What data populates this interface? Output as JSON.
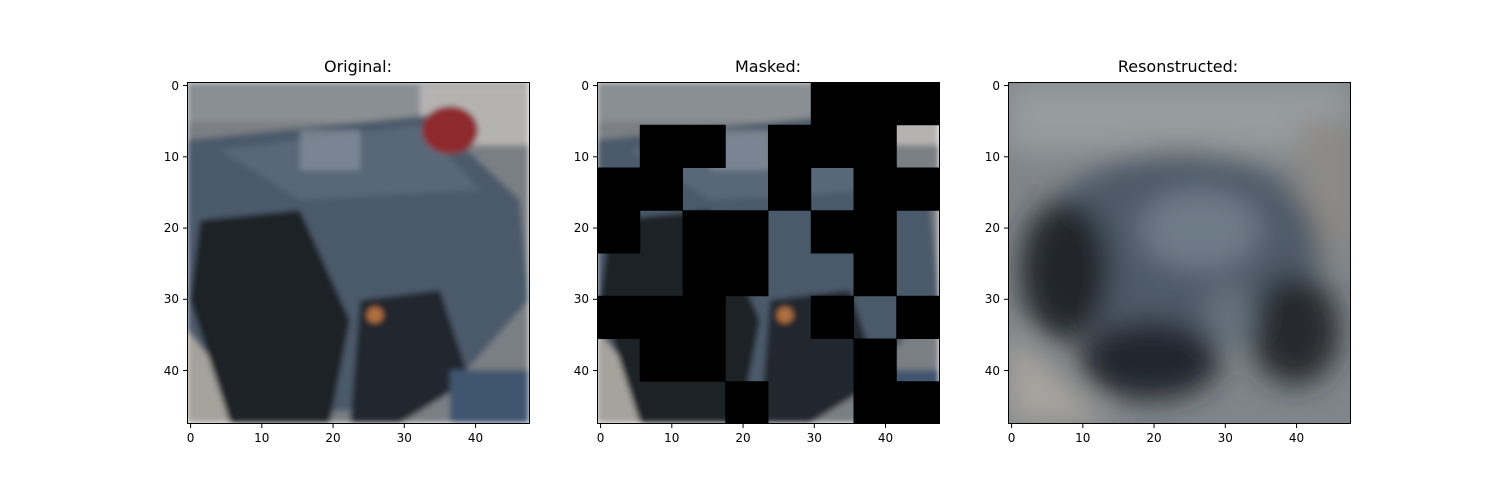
{
  "panels": [
    {
      "title": "Original:"
    },
    {
      "title": "Masked:"
    },
    {
      "title": "Resonstructed:"
    }
  ],
  "axes": {
    "x_ticks": [
      "0",
      "10",
      "20",
      "30",
      "40"
    ],
    "y_ticks": [
      "0",
      "10",
      "20",
      "30",
      "40"
    ]
  },
  "image": {
    "grid_size": 48,
    "patch_size": 6,
    "masked_patches": [
      [
        0,
        5
      ],
      [
        0,
        6
      ],
      [
        0,
        7
      ],
      [
        1,
        1
      ],
      [
        1,
        2
      ],
      [
        1,
        4
      ],
      [
        1,
        5
      ],
      [
        1,
        6
      ],
      [
        2,
        0
      ],
      [
        2,
        1
      ],
      [
        2,
        4
      ],
      [
        2,
        6
      ],
      [
        2,
        7
      ],
      [
        3,
        0
      ],
      [
        3,
        2
      ],
      [
        3,
        3
      ],
      [
        3,
        5
      ],
      [
        3,
        6
      ],
      [
        4,
        2
      ],
      [
        4,
        3
      ],
      [
        4,
        6
      ],
      [
        5,
        0
      ],
      [
        5,
        1
      ],
      [
        5,
        2
      ],
      [
        5,
        5
      ],
      [
        5,
        7
      ],
      [
        6,
        1
      ],
      [
        6,
        2
      ],
      [
        6,
        6
      ],
      [
        7,
        3
      ],
      [
        7,
        6
      ],
      [
        7,
        7
      ]
    ],
    "colors": {
      "background": "#7a7f84",
      "car_body": "#4b5a6a",
      "car_dark": "#1f2328",
      "road": "#a6a39d",
      "red_object": "#8e2a2e",
      "sky": "#9aa0a4",
      "mask": "#000000"
    }
  }
}
